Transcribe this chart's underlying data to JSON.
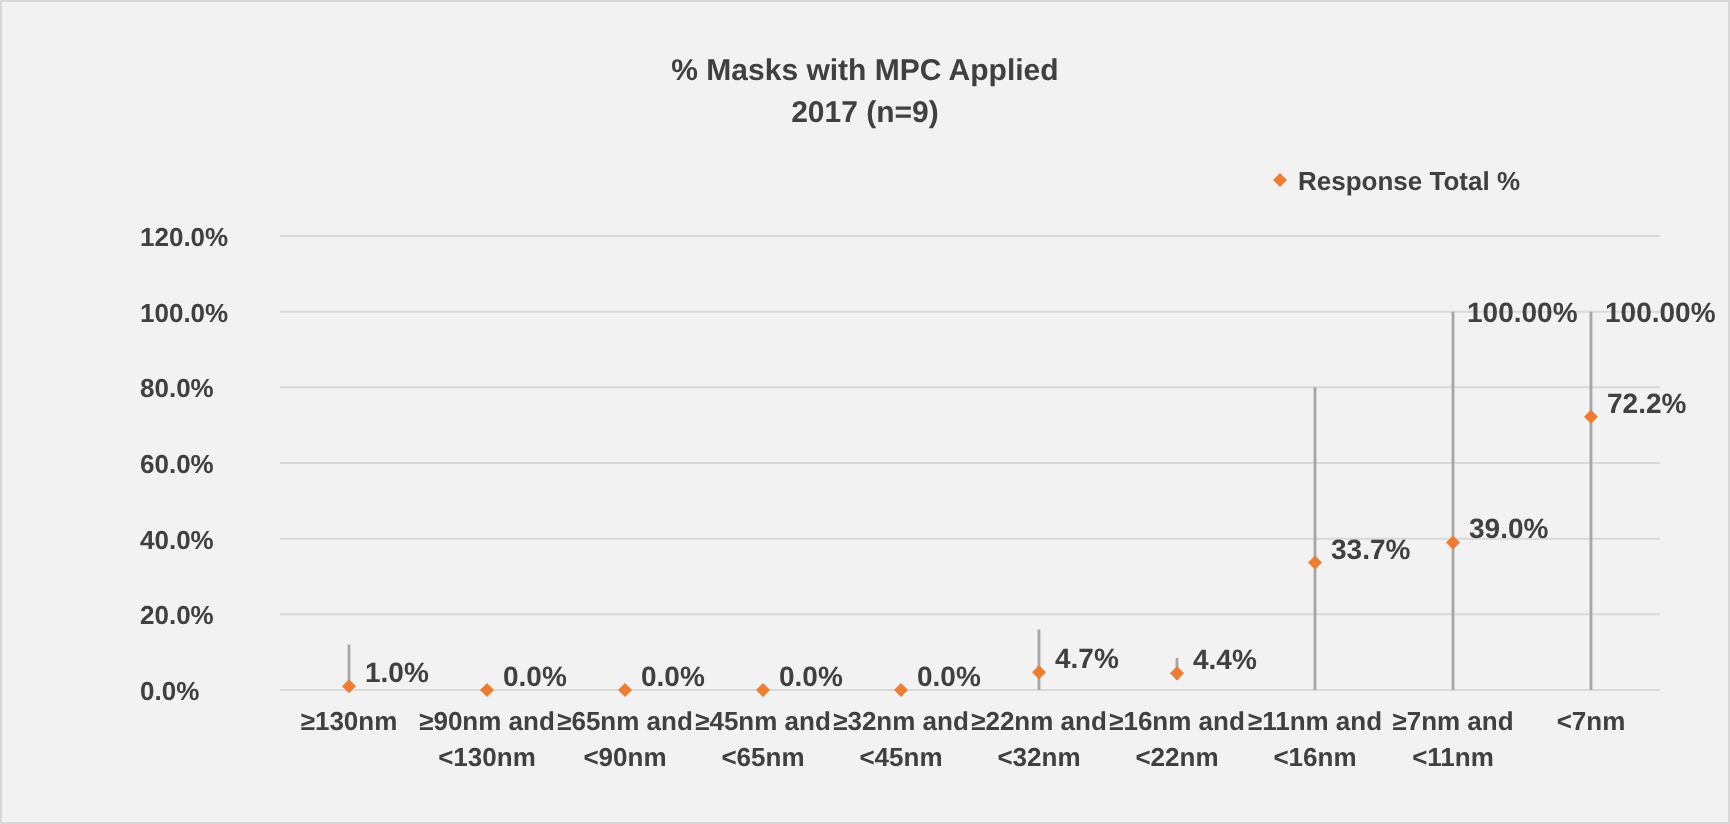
{
  "chart_data": {
    "type": "scatter",
    "title": "% Masks with MPC Applied",
    "subtitle": "2017 (n=9)",
    "categories": [
      "≥130nm",
      "≥90nm and\n<130nm",
      "≥65nm and\n<90nm",
      "≥45nm and\n<65nm",
      "≥32nm and\n<45nm",
      "≥22nm and\n<32nm",
      "≥16nm and\n<22nm",
      "≥11nm and\n<16nm",
      "≥7nm and\n<11nm",
      "<7nm"
    ],
    "series": [
      {
        "name": "Response Total %",
        "color": "#ed7d31",
        "values": [
          1.0,
          0.0,
          0.0,
          0.0,
          0.0,
          4.7,
          4.4,
          33.7,
          39.0,
          72.2
        ],
        "value_labels": [
          "1.0%",
          "0.0%",
          "0.0%",
          "0.0%",
          "0.0%",
          "4.7%",
          "4.4%",
          "33.7%",
          "39.0%",
          "72.2%"
        ],
        "errors": [
          [
            0,
            12
          ],
          null,
          null,
          null,
          null,
          [
            0,
            16
          ],
          [
            2.6,
            8.5
          ],
          [
            0,
            80
          ],
          [
            0,
            100
          ],
          [
            0,
            100
          ]
        ]
      }
    ],
    "annotations": [
      "100.00%",
      "100.00%"
    ],
    "ylim": [
      0,
      120
    ],
    "yticks": [
      {
        "value": 0,
        "label": "0.0%"
      },
      {
        "value": 20,
        "label": "20.0%"
      },
      {
        "value": 40,
        "label": "40.0%"
      },
      {
        "value": 60,
        "label": "60.0%"
      },
      {
        "value": 80,
        "label": "80.0%"
      },
      {
        "value": 100,
        "label": "100.0%"
      },
      {
        "value": 120,
        "label": "120.0%"
      }
    ],
    "grid": "y",
    "legend": "top right",
    "marker": "diamond"
  }
}
